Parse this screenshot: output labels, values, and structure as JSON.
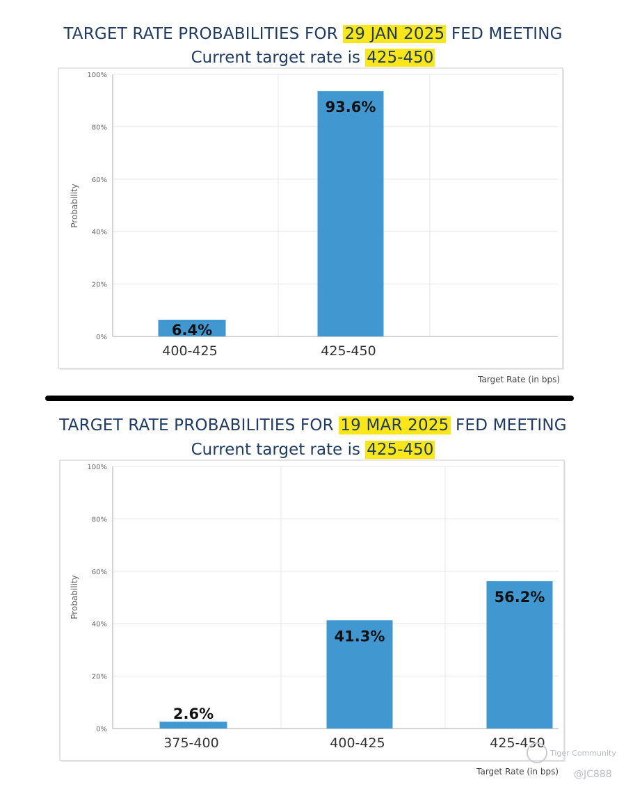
{
  "charts": [
    {
      "title_prefix": "TARGET RATE PROBABILITIES FOR ",
      "title_date": "29 JAN 2025",
      "title_suffix": " FED MEETING",
      "subtitle_prefix": "Current target rate is ",
      "subtitle_rate": "425-450"
    },
    {
      "title_prefix": "TARGET RATE PROBABILITIES FOR ",
      "title_date": "19 MAR 2025",
      "title_suffix": " FED MEETING",
      "subtitle_prefix": "Current target rate is ",
      "subtitle_rate": "425-450"
    }
  ],
  "chart_data": [
    {
      "type": "bar",
      "categories": [
        "400-425",
        "425-450"
      ],
      "values": [
        6.4,
        93.6
      ],
      "data_labels": [
        "6.4%",
        "93.6%"
      ],
      "xlabel": "Target Rate (in bps)",
      "ylabel": "Probability",
      "ylim": [
        0,
        100
      ],
      "yticks": [
        "0%",
        "20%",
        "40%",
        "60%",
        "80%",
        "100%"
      ],
      "grid": true,
      "colors": {
        "bar": "#4197d0",
        "grid": "#e4e4e4",
        "axis": "#aaaaaa"
      }
    },
    {
      "type": "bar",
      "categories": [
        "375-400",
        "400-425",
        "425-450"
      ],
      "values": [
        2.6,
        41.3,
        56.2
      ],
      "data_labels": [
        "2.6%",
        "41.3%",
        "56.2%"
      ],
      "xlabel": "Target Rate (in bps)",
      "ylabel": "Probability",
      "ylim": [
        0,
        100
      ],
      "yticks": [
        "0%",
        "20%",
        "40%",
        "60%",
        "80%",
        "100%"
      ],
      "grid": true,
      "colors": {
        "bar": "#4197d0",
        "grid": "#e4e4e4",
        "axis": "#aaaaaa"
      }
    }
  ],
  "watermark": {
    "brand": "Tiger Community",
    "user": "@JC888",
    "logo_icon": "tiger-community-logo-icon"
  }
}
